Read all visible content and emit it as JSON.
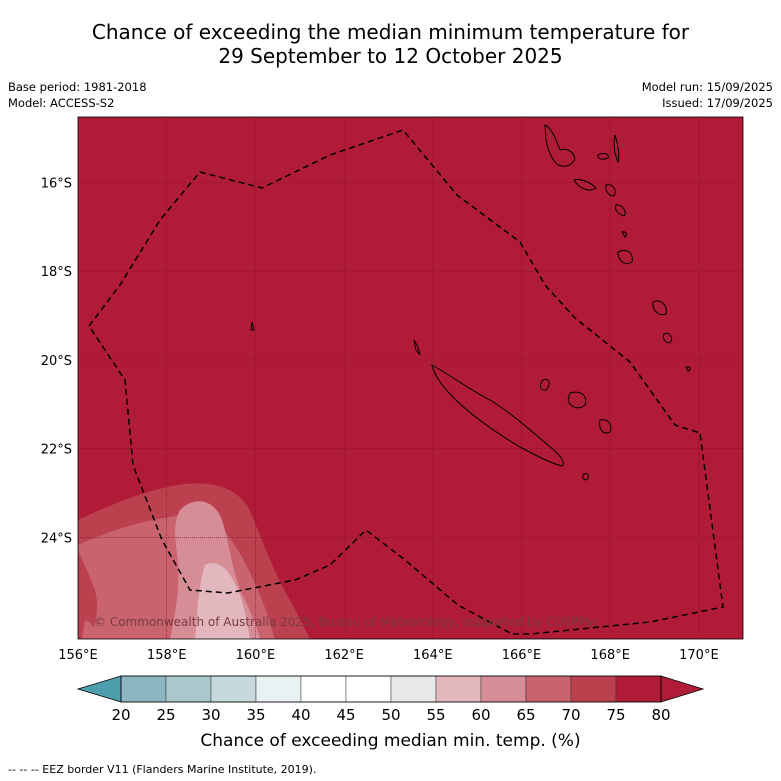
{
  "title": {
    "line1": "Chance of exceeding the median minimum temperature for",
    "line2": "29 September to 12 October 2025"
  },
  "meta": {
    "base_period": "Base period: 1981-2018",
    "model": "Model: ACCESS-S2",
    "model_run": "Model run: 15/09/2025",
    "issued": "Issued: 17/09/2025"
  },
  "map": {
    "lon_ticks": [
      "156°E",
      "158°E",
      "160°E",
      "162°E",
      "164°E",
      "166°E",
      "168°E",
      "170°E"
    ],
    "lat_ticks": [
      "16°S",
      "18°S",
      "20°S",
      "22°S",
      "24°S"
    ],
    "copyright": "© Commonwealth of Australia 2025, Bureau of Meteorology, supported by COSPPac",
    "background_color": "#b01c38"
  },
  "colorbar": {
    "ticks": [
      "20",
      "25",
      "30",
      "35",
      "40",
      "45",
      "50",
      "55",
      "60",
      "65",
      "70",
      "75",
      "80"
    ],
    "colors": [
      "#6aaeba",
      "#8cb6c0",
      "#a9c7cc",
      "#c8d9dd",
      "#eaf1f2",
      "#ffffff",
      "#ffffff",
      "#e8e8e8",
      "#e2b7bd",
      "#d78d96",
      "#c9646f",
      "#bc414f",
      "#b01c38"
    ],
    "under_color": "#4e9fae",
    "over_color": "#b01c38",
    "label": "Chance of exceeding median min. temp. (%)"
  },
  "footnote": "--  --  -- EEZ border V11 (Flanders Marine Institute, 2019)."
}
